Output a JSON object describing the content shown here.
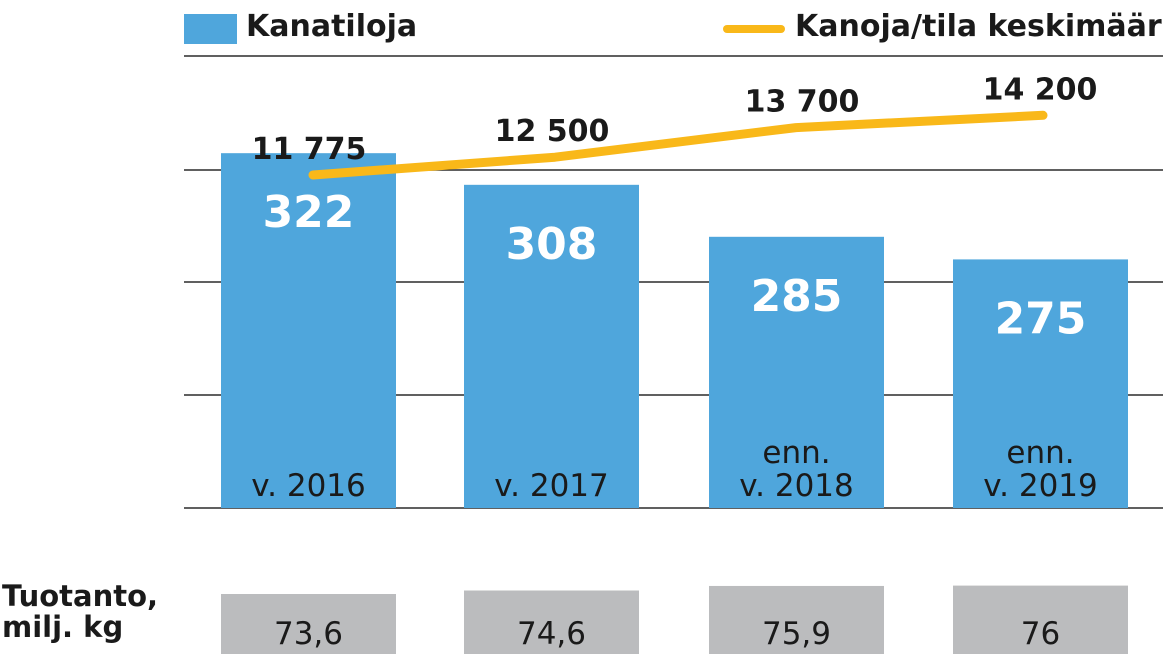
{
  "legend": {
    "bars_label": "Kanatiloja",
    "line_label": "Kanoja/tila keskimäärin"
  },
  "production_label": {
    "line1": "Tuotanto,",
    "line2": "milj. kg"
  },
  "colors": {
    "bar": "#4fa6dc",
    "line": "#f9b819",
    "production_bar": "#bbbcbe",
    "grid": "#2b2b2b",
    "text": "#1a1a1a",
    "bar_value_text": "#ffffff"
  },
  "chart_data": {
    "type": "bar",
    "categories": [
      [
        "v. 2016"
      ],
      [
        "v. 2017"
      ],
      [
        "enn.",
        "v. 2018"
      ],
      [
        "enn.",
        "v. 2019"
      ]
    ],
    "series": [
      {
        "name": "Kanatiloja",
        "type": "bar",
        "values": [
          322,
          308,
          285,
          275
        ],
        "labels": [
          "322",
          "308",
          "285",
          "275"
        ]
      },
      {
        "name": "Kanoja/tila keskimäärin",
        "type": "line",
        "values": [
          11775,
          12500,
          13700,
          14200
        ],
        "labels": [
          "11 775",
          "12 500",
          "13 700",
          "14 200"
        ]
      },
      {
        "name": "Tuotanto, milj. kg",
        "type": "bar",
        "values": [
          73.6,
          74.6,
          75.9,
          76
        ],
        "labels": [
          "73,6",
          "74,6",
          "75,9",
          "76"
        ]
      }
    ],
    "grid": true,
    "legend_position": "top"
  }
}
